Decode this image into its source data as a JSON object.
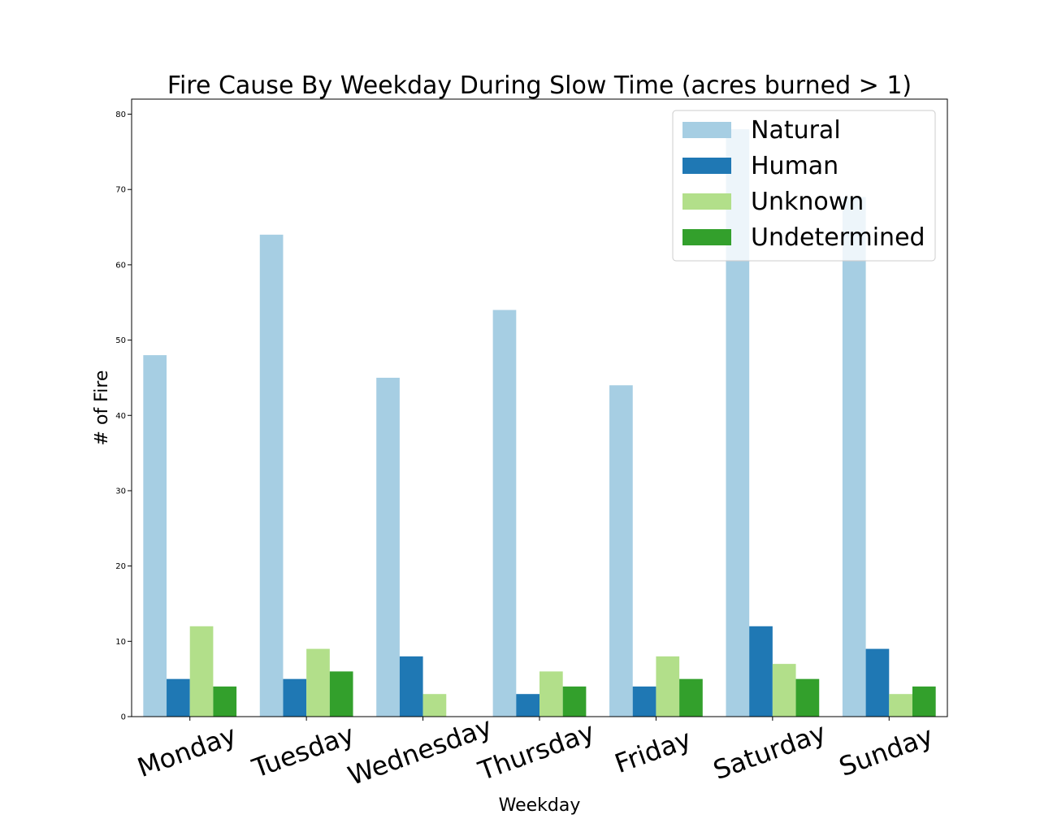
{
  "chart_data": {
    "type": "bar",
    "title": "Fire Cause By Weekday During Slow Time (acres burned > 1)",
    "xlabel": "Weekday",
    "ylabel": "# of Fire",
    "categories": [
      "Monday",
      "Tuesday",
      "Wednesday",
      "Thursday",
      "Friday",
      "Saturday",
      "Sunday"
    ],
    "series": [
      {
        "name": "Natural",
        "color": "#a6cee3",
        "values": [
          48,
          64,
          45,
          54,
          44,
          78,
          69
        ]
      },
      {
        "name": "Human",
        "color": "#1f78b4",
        "values": [
          5,
          5,
          8,
          3,
          4,
          12,
          9
        ]
      },
      {
        "name": "Unknown",
        "color": "#b2df8a",
        "values": [
          12,
          9,
          3,
          6,
          8,
          7,
          3
        ]
      },
      {
        "name": "Undetermined",
        "color": "#33a02c",
        "values": [
          4,
          6,
          0,
          4,
          5,
          5,
          4
        ]
      }
    ],
    "ylim": [
      0,
      82
    ],
    "yticks": [
      0,
      10,
      20,
      30,
      40,
      50,
      60,
      70,
      80
    ],
    "grid": false,
    "legend_position": "top-right"
  }
}
